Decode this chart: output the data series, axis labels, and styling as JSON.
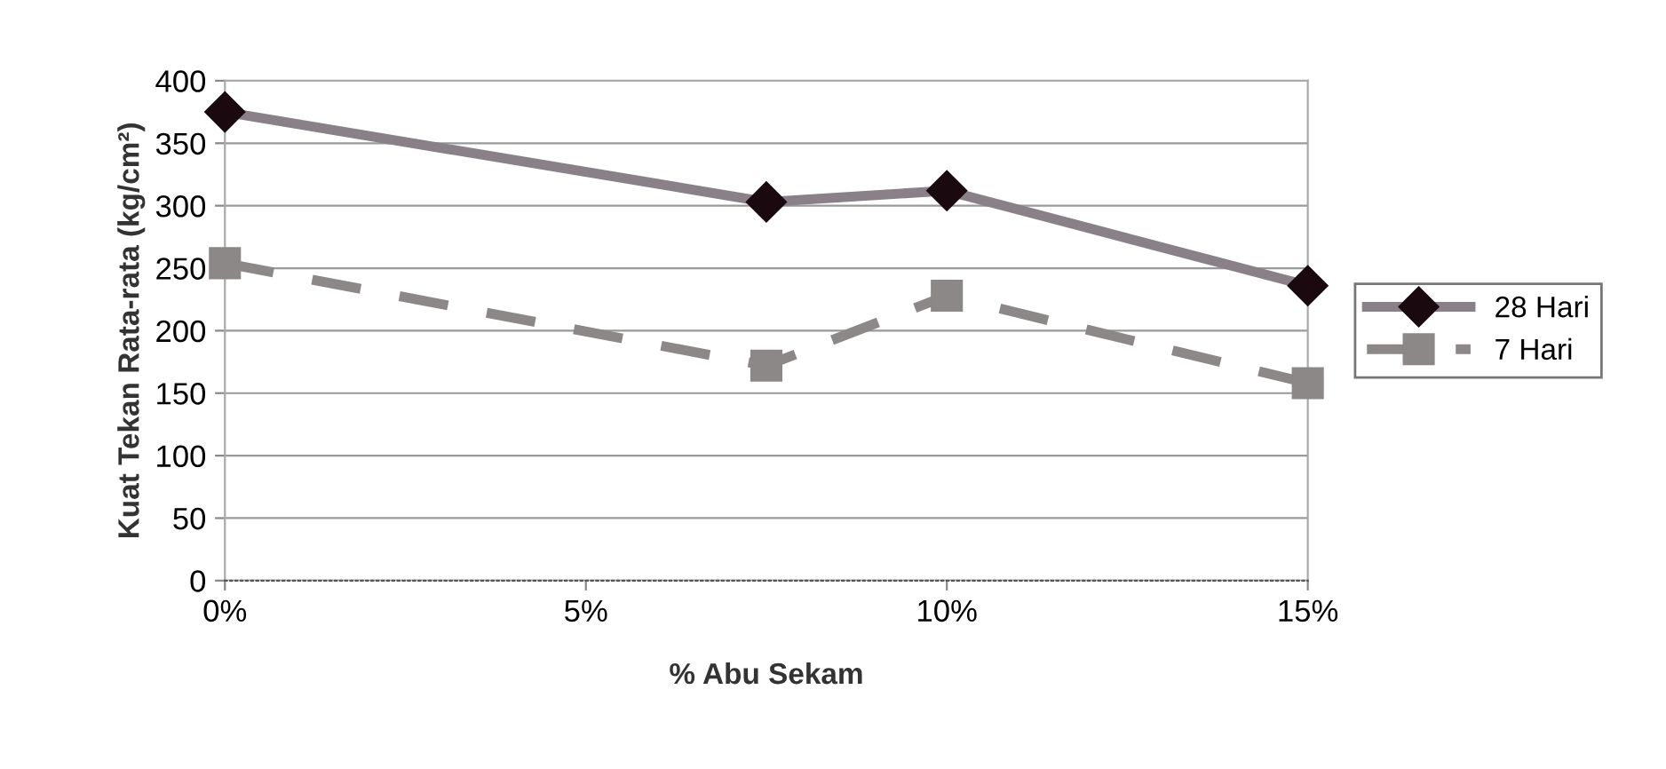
{
  "chart_data": {
    "type": "line",
    "xlabel": "% Abu Sekam",
    "ylabel": "Kuat Tekan Rata-rata (kg/cm²)",
    "x": [
      0,
      7.5,
      10,
      15
    ],
    "series": [
      {
        "name": "28 Hari",
        "color": "#8a8088",
        "values": [
          375,
          303,
          312,
          236
        ],
        "marker": "diamond",
        "line_style": "solid"
      },
      {
        "name": "7 Hari",
        "color": "#8c8888",
        "values": [
          254,
          172,
          228,
          158
        ],
        "marker": "square",
        "line_style": "dashed"
      }
    ],
    "xlim": [
      0,
      15
    ],
    "xticks": [
      {
        "value": 0,
        "label": "0%"
      },
      {
        "value": 5,
        "label": "5%"
      },
      {
        "value": 10,
        "label": "10%"
      },
      {
        "value": 15,
        "label": "15%"
      }
    ],
    "ylim": [
      0,
      400
    ],
    "yticks": [
      0,
      50,
      100,
      150,
      200,
      250,
      300,
      350,
      400
    ],
    "grid": "y",
    "legend": "right"
  }
}
